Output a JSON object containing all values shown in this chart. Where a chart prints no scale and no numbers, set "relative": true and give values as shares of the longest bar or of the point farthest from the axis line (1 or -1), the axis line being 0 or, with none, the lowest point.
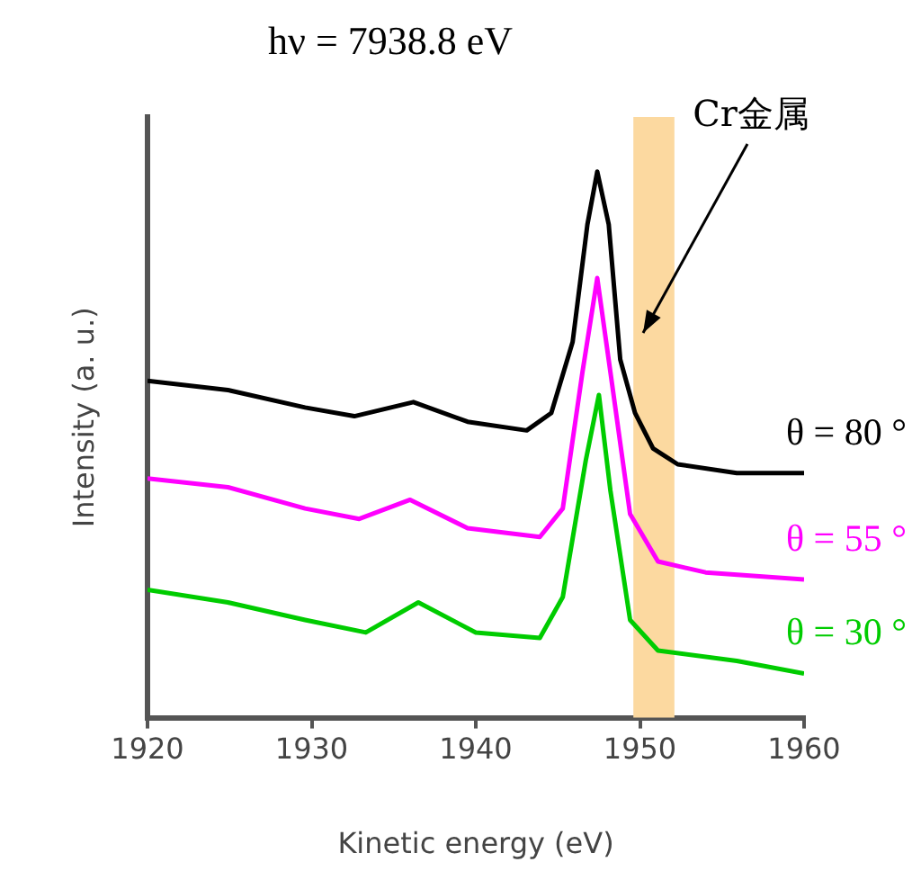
{
  "chart_data": {
    "type": "line",
    "title": "hν = 7938.8 eV",
    "xlabel": "Kinetic energy (eV)",
    "ylabel": "Intensity (a. u.)",
    "relative": true,
    "xlim": [
      1920,
      1960
    ],
    "xticks": [
      1920,
      1930,
      1940,
      1950,
      1960
    ],
    "legend": false,
    "grid": false,
    "marker": "none",
    "line_style": "solid",
    "series": [
      {
        "name": "θ = 80 °",
        "color": "#000000",
        "x": [
          1920,
          1924.9,
          1929.6,
          1932.6,
          1936.2,
          1939.5,
          1943.1,
          1944.6,
          1945.9,
          1946.8,
          1947.4,
          1948.1,
          1948.8,
          1949.7,
          1950.8,
          1952.3,
          1955.9,
          1960
        ],
        "values": [
          0.617,
          0.6,
          0.568,
          0.552,
          0.578,
          0.542,
          0.526,
          0.558,
          0.688,
          0.903,
          1.0,
          0.903,
          0.656,
          0.558,
          0.493,
          0.464,
          0.448,
          0.448
        ]
      },
      {
        "name": "θ = 55 °",
        "color": "#ff00ff",
        "x": [
          1920,
          1924.9,
          1929.6,
          1932.9,
          1936,
          1939.5,
          1943.9,
          1945.3,
          1946.5,
          1947.4,
          1948.2,
          1949.4,
          1951.1,
          1954,
          1960
        ],
        "values": [
          0.438,
          0.422,
          0.383,
          0.364,
          0.399,
          0.347,
          0.331,
          0.383,
          0.633,
          0.805,
          0.633,
          0.373,
          0.286,
          0.266,
          0.253
        ]
      },
      {
        "name": "θ = 30 °",
        "color": "#00cc00",
        "x": [
          1920,
          1924.9,
          1929.6,
          1933.3,
          1936.5,
          1940,
          1943.9,
          1945.3,
          1946.7,
          1947.5,
          1948.2,
          1949.4,
          1951.1,
          1955.9,
          1960
        ],
        "values": [
          0.234,
          0.211,
          0.179,
          0.156,
          0.211,
          0.156,
          0.146,
          0.221,
          0.471,
          0.591,
          0.416,
          0.179,
          0.123,
          0.104,
          0.081
        ]
      }
    ],
    "bands": [
      {
        "axis": "x",
        "from": 1949.6,
        "to": 1952.1,
        "color": "#fcd9a0"
      }
    ],
    "annotations": [
      "Cr金属"
    ]
  }
}
